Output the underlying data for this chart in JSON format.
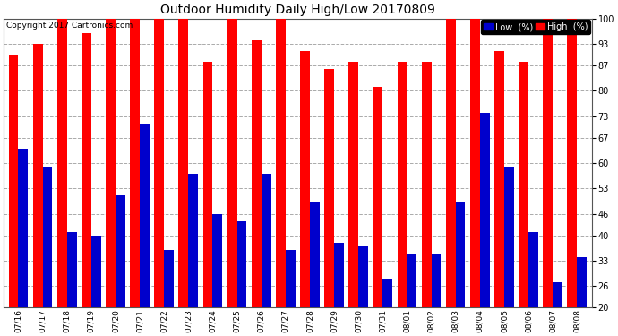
{
  "title": "Outdoor Humidity Daily High/Low 20170809",
  "copyright": "Copyright 2017 Cartronics.com",
  "categories": [
    "07/16",
    "07/17",
    "07/18",
    "07/19",
    "07/20",
    "07/21",
    "07/22",
    "07/23",
    "07/24",
    "07/25",
    "07/26",
    "07/27",
    "07/28",
    "07/29",
    "07/30",
    "07/31",
    "08/01",
    "08/02",
    "08/03",
    "08/04",
    "08/05",
    "08/06",
    "08/07",
    "08/08"
  ],
  "high": [
    90,
    93,
    100,
    96,
    100,
    100,
    100,
    100,
    88,
    100,
    94,
    100,
    91,
    86,
    88,
    81,
    88,
    88,
    100,
    100,
    91,
    88,
    100,
    100
  ],
  "low": [
    64,
    59,
    41,
    40,
    51,
    71,
    36,
    57,
    46,
    44,
    57,
    36,
    49,
    38,
    37,
    28,
    35,
    35,
    49,
    74,
    59,
    41,
    27,
    34
  ],
  "high_color": "#ff0000",
  "low_color": "#0000cc",
  "bg_color": "#ffffff",
  "grid_color": "#aaaaaa",
  "ylim_min": 20,
  "ylim_max": 100,
  "yticks": [
    20,
    26,
    33,
    40,
    46,
    53,
    60,
    67,
    73,
    80,
    87,
    93,
    100
  ],
  "bar_width": 0.4,
  "legend_low_label": "Low  (%)",
  "legend_high_label": "High  (%)"
}
